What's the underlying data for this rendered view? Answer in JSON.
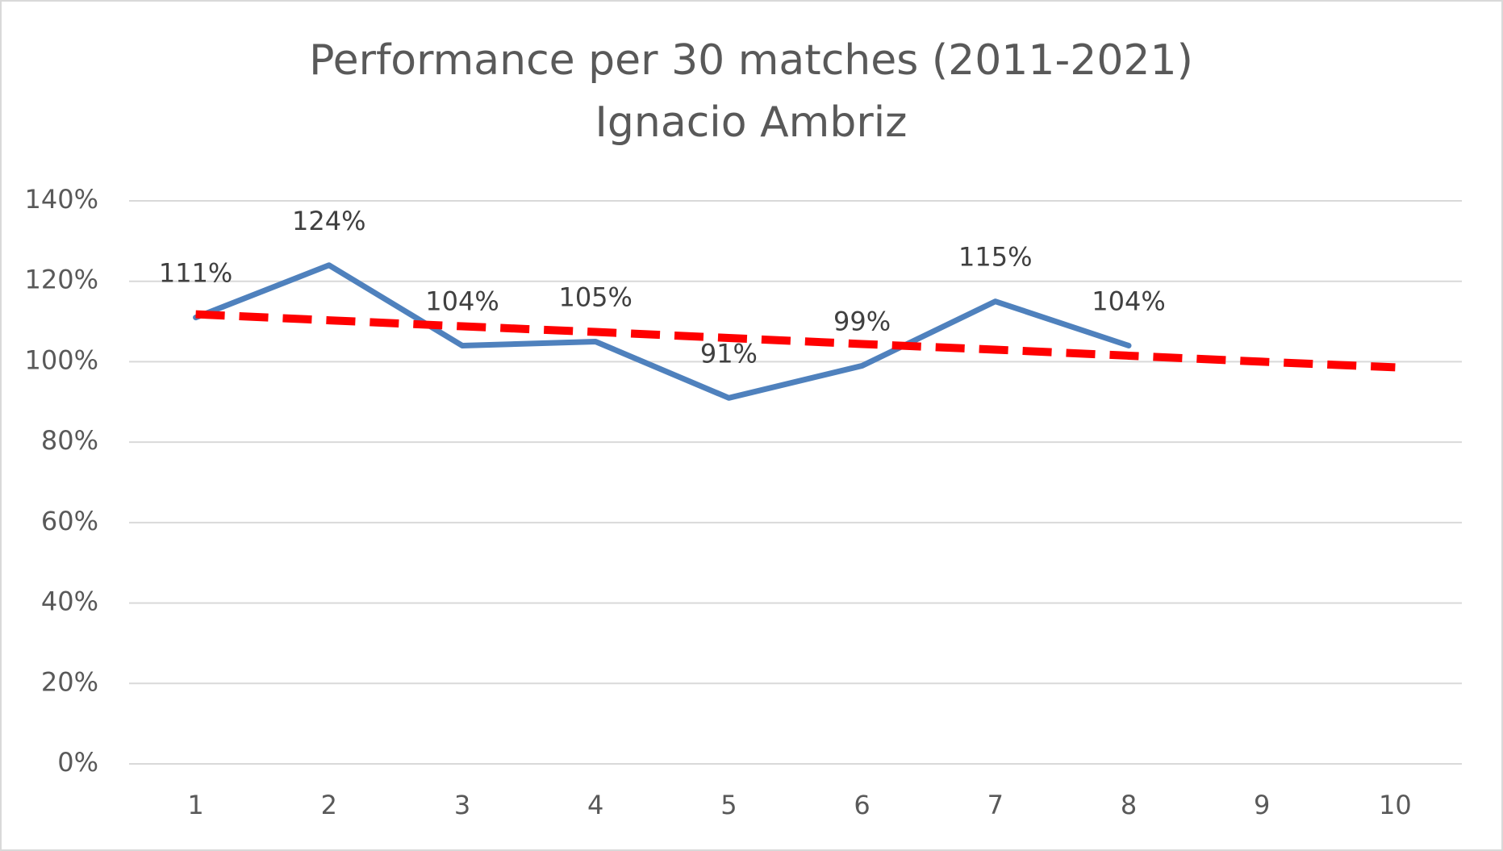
{
  "chart_data": {
    "type": "line",
    "title": [
      "Performance per 30 matches (2011-2021)",
      "Ignacio Ambriz"
    ],
    "categories": [
      "1",
      "2",
      "3",
      "4",
      "5",
      "6",
      "7",
      "8",
      "9",
      "10"
    ],
    "series": [
      {
        "color": "#4f81bd",
        "values": [
          111,
          124,
          104,
          105,
          91,
          99,
          115,
          104,
          null,
          null
        ],
        "value_labels": [
          "111%",
          "124%",
          "104%",
          "105%",
          "91%",
          "99%",
          "115%",
          "104%",
          null,
          null
        ]
      },
      {
        "color": "#ff0000",
        "dashed": true,
        "values": [
          111.8,
          110.3,
          108.8,
          107.4,
          105.9,
          104.4,
          103.0,
          101.5,
          100.0,
          98.6
        ]
      }
    ],
    "ylim": [
      0,
      140
    ],
    "yticks": [
      {
        "value": 0,
        "label": "0%"
      },
      {
        "value": 20,
        "label": "20%"
      },
      {
        "value": 40,
        "label": "40%"
      },
      {
        "value": 60,
        "label": "60%"
      },
      {
        "value": 80,
        "label": "80%"
      },
      {
        "value": 100,
        "label": "100%"
      },
      {
        "value": 120,
        "label": "120%"
      },
      {
        "value": 140,
        "label": "140%"
      }
    ],
    "grid": true
  }
}
